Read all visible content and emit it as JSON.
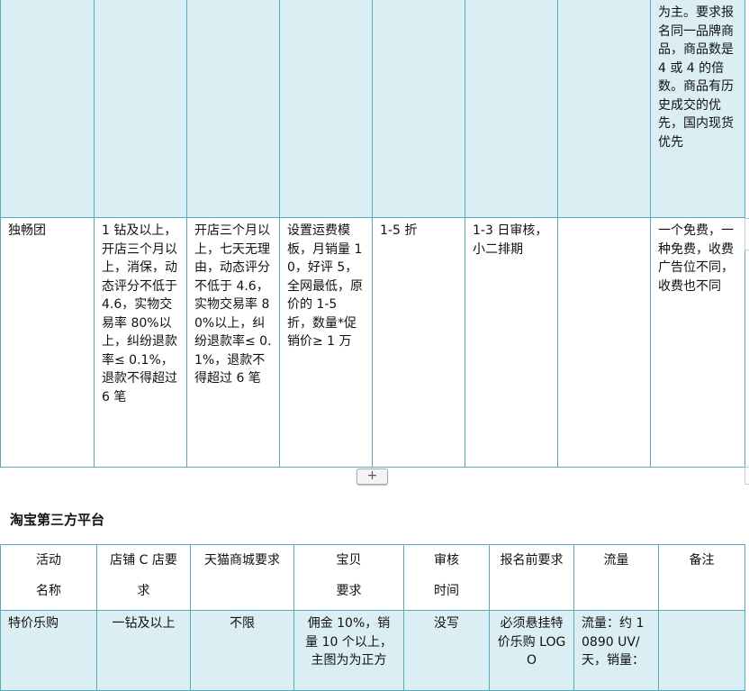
{
  "table1": {
    "row1": {
      "notes": "为主。要求报名同一品牌商品，商品数是 4 或 4 的倍数。商品有历史成交的优先，国内现货优先"
    },
    "row2": {
      "name": "独畅团",
      "c_shop": "1 钻及以上，开店三个月以上，消保，动态评分不低于 4.6，实物交易率 80%以上，纠纷退款率≤ 0.1%，退款不得超过 6 笔",
      "tmall": "开店三个月以上，七天无理由，动态评分不低于 4.6，实物交易率 80%以上，纠纷退款率≤ 0.1%，退款不得超过 6 笔",
      "item": "设置运费模板，月销量 10，好评 5，全网最低，原价的 1-5 折，数量*促销价≥ 1 万",
      "discount": "1-5 折",
      "review": "1-3 日审核，小二排期",
      "pre": "",
      "notes": "一个免费，一种免费，收费广告位不同，收费也不同"
    }
  },
  "add_button": "+",
  "heading": "淘宝第三方平台",
  "table2": {
    "headers": [
      "活动\n名称",
      "店铺 C 店要求",
      "天猫商城要求",
      "宝贝\n要求",
      "审核\n时间",
      "报名前要求",
      "流量",
      "备注"
    ],
    "rows": [
      [
        "特价乐购",
        "一钻及以上",
        "不限",
        "佣金 10%，销量 10 个以上，主图为为正方",
        "没写",
        "必须悬挂特价乐购 LOGO",
        "流量：约 10890 UV/天，销量：",
        ""
      ]
    ]
  }
}
